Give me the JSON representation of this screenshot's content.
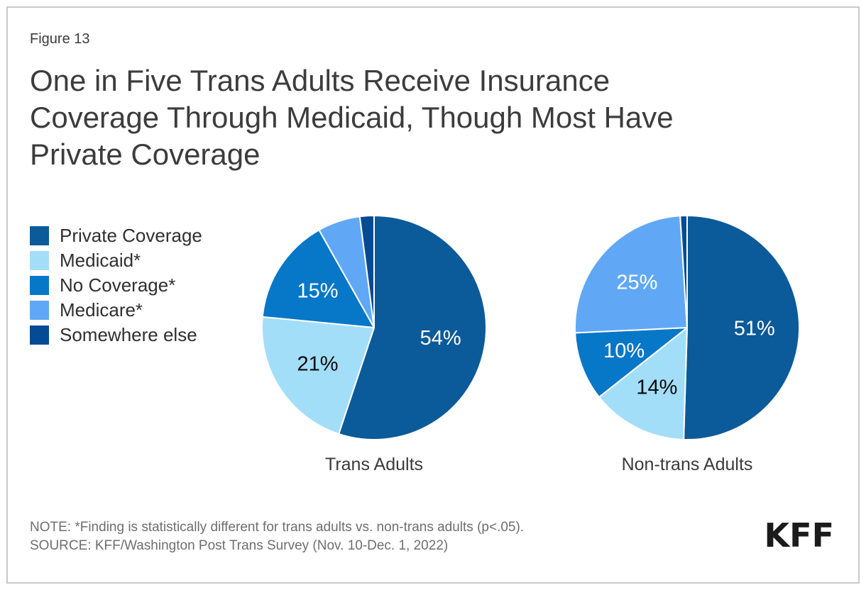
{
  "header": {
    "figure_label": "Figure 13",
    "title_lines": [
      "One in Five Trans Adults Receive Insurance",
      "Coverage Through Medicaid, Though Most Have",
      "Private Coverage"
    ]
  },
  "legend": {
    "position": "left",
    "items": [
      {
        "label": "Private Coverage",
        "color": "#0B5A99"
      },
      {
        "label": "Medicaid*",
        "color": "#A2DEF8"
      },
      {
        "label": "No Coverage*",
        "color": "#0777C8"
      },
      {
        "label": "Medicare*",
        "color": "#60A8F5"
      },
      {
        "label": "Somewhere else",
        "color": "#054A94"
      }
    ]
  },
  "chart_data": [
    {
      "type": "pie",
      "title": "Trans Adults",
      "start_angle": "12 o'clock",
      "direction": "clockwise",
      "slices": [
        {
          "name": "Private Coverage",
          "value": 54,
          "label": "54%",
          "color": "#0B5A99",
          "label_color": "#FFFFFF"
        },
        {
          "name": "Medicaid*",
          "value": 21,
          "label": "21%",
          "color": "#A2DEF8",
          "label_color": "#0A0A0A"
        },
        {
          "name": "No Coverage*",
          "value": 15,
          "label": "15%",
          "color": "#0777C8",
          "label_color": "#FFFFFF"
        },
        {
          "name": "Medicare*",
          "value": 6,
          "label": "",
          "color": "#60A8F5",
          "label_color": "#FFFFFF"
        },
        {
          "name": "Somewhere else",
          "value": 2,
          "label": "",
          "color": "#054A94",
          "label_color": "#FFFFFF"
        }
      ]
    },
    {
      "type": "pie",
      "title": "Non-trans Adults",
      "start_angle": "12 o'clock",
      "direction": "clockwise",
      "slices": [
        {
          "name": "Private Coverage",
          "value": 51,
          "label": "51%",
          "color": "#0B5A99",
          "label_color": "#FFFFFF"
        },
        {
          "name": "Medicaid*",
          "value": 14,
          "label": "14%",
          "color": "#A2DEF8",
          "label_color": "#0A0A0A"
        },
        {
          "name": "No Coverage*",
          "value": 10,
          "label": "10%",
          "color": "#0777C8",
          "label_color": "#FFFFFF"
        },
        {
          "name": "Medicare*",
          "value": 25,
          "label": "25%",
          "color": "#60A8F5",
          "label_color": "#FFFFFF"
        },
        {
          "name": "Somewhere else",
          "value": 1,
          "label": "",
          "color": "#054A94",
          "label_color": "#FFFFFF"
        }
      ]
    }
  ],
  "footer": {
    "note": "NOTE: *Finding is statistically different for trans adults vs. non-trans adults (p<.05).",
    "source": "SOURCE: KFF/Washington Post Trans Survey (Nov. 10-Dec. 1, 2022)",
    "logo_text": "KFF"
  }
}
